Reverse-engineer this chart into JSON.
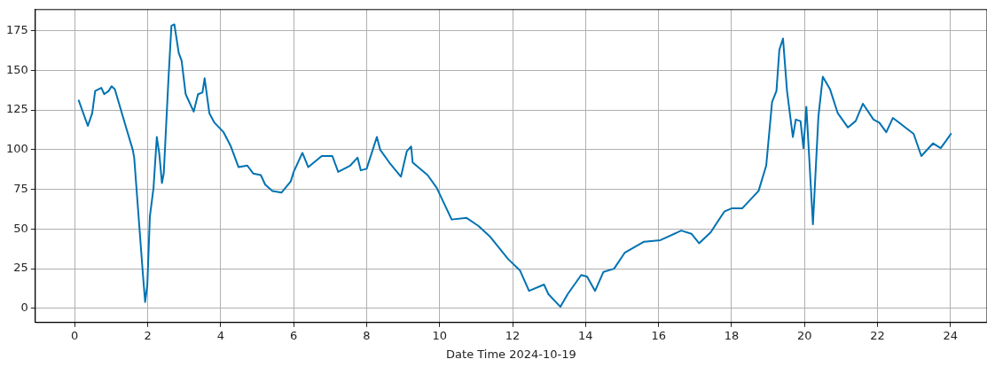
{
  "chart_data": {
    "type": "line",
    "xlabel": "Date Time 2024-10-19",
    "xlim": [
      -1.08,
      25.0
    ],
    "ylim": [
      -8.9,
      188.3
    ],
    "xticks": [
      0,
      2,
      4,
      6,
      8,
      10,
      12,
      14,
      16,
      18,
      20,
      22,
      24
    ],
    "yticks": [
      0,
      25,
      50,
      75,
      100,
      125,
      150,
      175
    ],
    "grid": true,
    "series": [
      {
        "color": "#0072b2",
        "x": [
          0.11,
          0.36,
          0.48,
          0.56,
          0.73,
          0.81,
          0.93,
          1.01,
          1.1,
          1.42,
          1.59,
          1.63,
          1.75,
          1.87,
          1.93,
          1.99,
          2.06,
          2.16,
          2.25,
          2.32,
          2.39,
          2.44,
          2.57,
          2.65,
          2.73,
          2.85,
          2.93,
          3.04,
          3.26,
          3.38,
          3.5,
          3.56,
          3.69,
          3.83,
          4.08,
          4.28,
          4.49,
          4.73,
          4.89,
          5.1,
          5.22,
          5.42,
          5.67,
          5.92,
          6.0,
          6.24,
          6.4,
          6.77,
          7.06,
          7.22,
          7.55,
          7.75,
          7.84,
          8.0,
          8.28,
          8.37,
          8.65,
          8.94,
          9.1,
          9.22,
          9.26,
          9.67,
          9.92,
          10.33,
          10.74,
          11.06,
          11.39,
          11.88,
          12.2,
          12.45,
          12.86,
          12.98,
          13.31,
          13.51,
          13.88,
          14.04,
          14.26,
          14.49,
          14.78,
          15.07,
          15.6,
          16.05,
          16.62,
          16.9,
          17.11,
          17.43,
          17.8,
          18.0,
          18.29,
          18.74,
          18.95,
          19.11,
          19.23,
          19.31,
          19.41,
          19.52,
          19.68,
          19.76,
          19.89,
          19.97,
          20.05,
          20.23,
          20.38,
          20.5,
          20.7,
          20.91,
          21.19,
          21.4,
          21.6,
          21.89,
          22.05,
          22.24,
          22.42,
          22.99,
          23.2,
          23.52,
          23.73,
          23.89,
          24.01
        ],
        "values": [
          131,
          115,
          123,
          137,
          139,
          135,
          137,
          140,
          138,
          113,
          100,
          95,
          58,
          21,
          4,
          15,
          58,
          76,
          108,
          97,
          79,
          85,
          145,
          178,
          179,
          161,
          156,
          135,
          124,
          135,
          136,
          145,
          123,
          117,
          111,
          102,
          89,
          90,
          85,
          84,
          78,
          74,
          73,
          80,
          86,
          98,
          89,
          96,
          96,
          86,
          90,
          95,
          87,
          88,
          108,
          100,
          91,
          83,
          99,
          102,
          92,
          84,
          76,
          56,
          57,
          52,
          45,
          31,
          24,
          11,
          15,
          9,
          1,
          9,
          21,
          20,
          11,
          23,
          25,
          35,
          42,
          43,
          49,
          47,
          41,
          48,
          61,
          63,
          63,
          74,
          90,
          130,
          137,
          163,
          170,
          137,
          108,
          119,
          118,
          101,
          127,
          53,
          121,
          146,
          138,
          123,
          114,
          118,
          129,
          119,
          117,
          111,
          120,
          110,
          96,
          104,
          101,
          106,
          110
        ]
      }
    ]
  }
}
